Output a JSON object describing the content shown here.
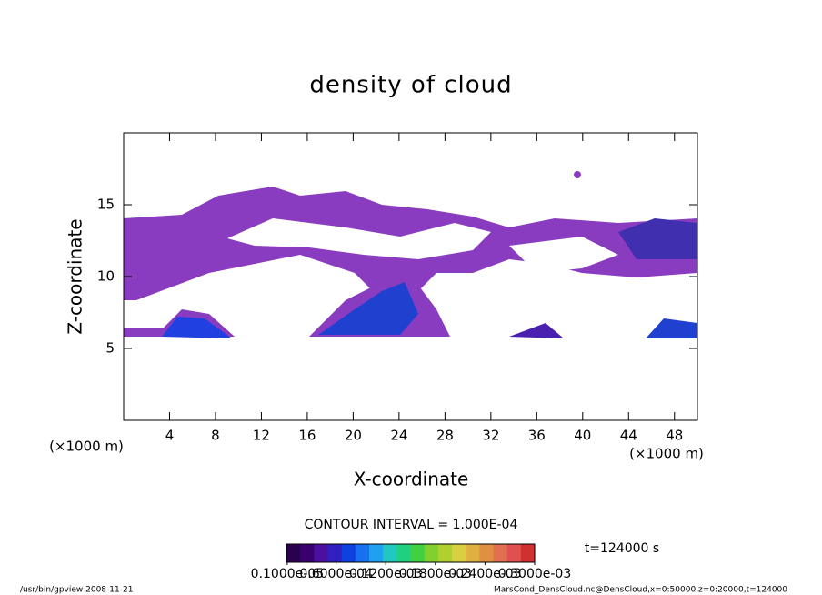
{
  "chart_data": {
    "type": "contour",
    "title": "density of cloud",
    "x_label": "X-coordinate",
    "y_label": "Z-coordinate",
    "x_unit": "(×1000 m)",
    "y_unit": "(×1000 m)",
    "xlim": [
      0,
      50
    ],
    "xticks": [
      4,
      8,
      12,
      16,
      20,
      24,
      28,
      32,
      36,
      40,
      44,
      48
    ],
    "ylim": [
      0,
      20
    ],
    "yticks": [
      5,
      10,
      15
    ],
    "contour_interval": "CONTOUR INTERVAL = 1.000E-04",
    "time_label": "t=124000 s",
    "colorbar": {
      "range": [
        0,
        0.0003
      ],
      "ticks": [
        {
          "value": 1e-06,
          "label": "0.1000e-05"
        },
        {
          "value": 6e-05,
          "label": "0.6000e-04"
        },
        {
          "value": 0.00012,
          "label": "0.1200e-03"
        },
        {
          "value": 0.00018,
          "label": "0.1800e-03"
        },
        {
          "value": 0.00024,
          "label": "0.2400e-03"
        },
        {
          "value": 0.0003,
          "label": "0.3000e-03"
        }
      ],
      "colors": [
        "#2a0050",
        "#3a0070",
        "#4a10a0",
        "#3020c0",
        "#1040e0",
        "#1870f0",
        "#20a0f0",
        "#20c8c0",
        "#20d080",
        "#40d040",
        "#80d030",
        "#b0d030",
        "#d8d040",
        "#e0b040",
        "#e09040",
        "#e07050",
        "#e05050",
        "#d03030"
      ]
    },
    "footer_left": "/usr/bin/gpview  2008-11-21",
    "footer_right": "MarsCond_DensCloud.nc@DensCloud,x=0:50000,z=0:20000,t=124000"
  }
}
